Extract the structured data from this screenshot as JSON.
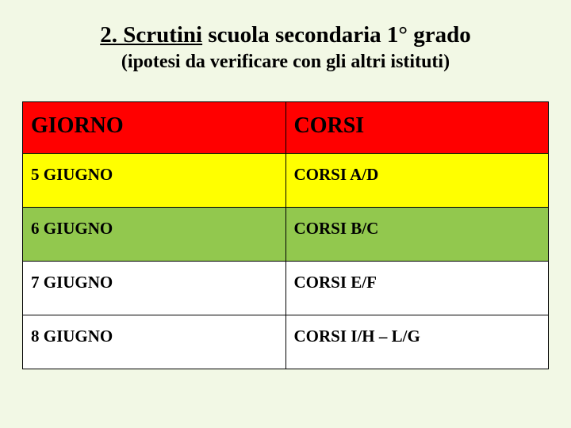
{
  "title_prefix": "2. Scrutini",
  "title_rest": " scuola secondaria 1° grado",
  "subtitle": "(ipotesi da verificare con gli altri istituti)",
  "table": {
    "header_bg": "#ff0000",
    "columns": [
      "GIORNO",
      "CORSI"
    ],
    "rows": [
      {
        "day": "5 GIUGNO",
        "course": "CORSI  A/D",
        "bg": "#ffff00"
      },
      {
        "day": "6 GIUGNO",
        "course": "CORSI  B/C",
        "bg": "#92c84e"
      },
      {
        "day": "7 GIUGNO",
        "course": "CORSI  E/F",
        "bg": "#ffffff"
      },
      {
        "day": "8 GIUGNO",
        "course": "CORSI  I/H – L/G",
        "bg": "#ffffff"
      }
    ]
  }
}
